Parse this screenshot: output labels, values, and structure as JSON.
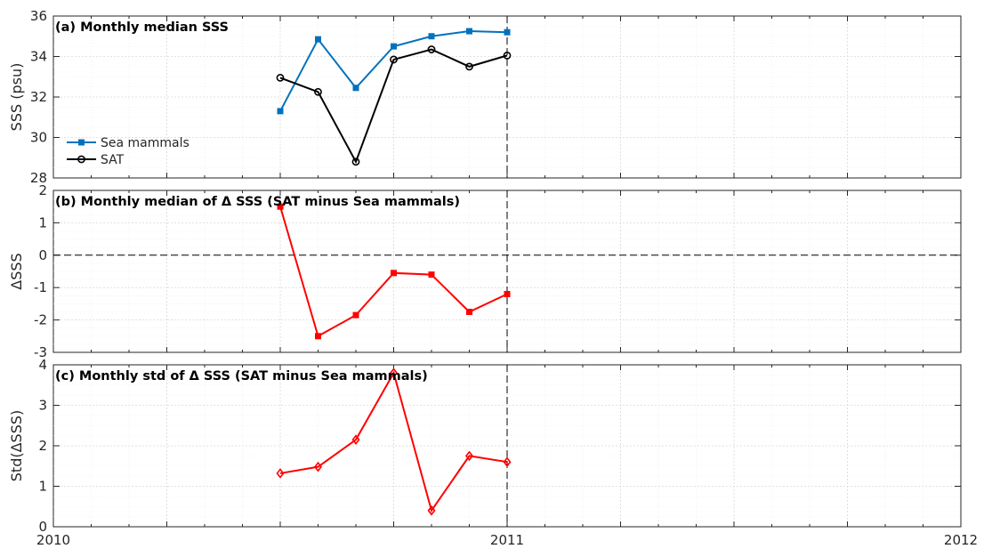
{
  "chart_data": [
    {
      "id": "a",
      "type": "line",
      "title": "(a) Monthly median SSS",
      "xlabel": "",
      "ylabel": "SSS (psu)",
      "ylim": [
        28,
        36
      ],
      "yticks": [
        28,
        30,
        32,
        34,
        36
      ],
      "xlim": [
        "2010-01",
        "2012-01"
      ],
      "xticks": [],
      "grid": true,
      "legend": "left",
      "vline_x": "2011-01",
      "series": [
        {
          "name": "Sea mammals",
          "color": "#0072bd",
          "marker": "square",
          "x": [
            "2010-07",
            "2010-08",
            "2010-09",
            "2010-10",
            "2010-11",
            "2010-12",
            "2011-01"
          ],
          "values": [
            31.3,
            34.85,
            32.45,
            34.5,
            35.0,
            35.25,
            35.2
          ]
        },
        {
          "name": "SAT",
          "color": "#000000",
          "marker": "circle",
          "x": [
            "2010-07",
            "2010-08",
            "2010-09",
            "2010-10",
            "2010-11",
            "2010-12",
            "2011-01"
          ],
          "values": [
            32.95,
            32.25,
            28.8,
            33.85,
            34.35,
            33.5,
            34.05
          ]
        }
      ]
    },
    {
      "id": "b",
      "type": "line",
      "title": "(b) Monthly median of Δ SSS (SAT minus Sea mammals)",
      "xlabel": "",
      "ylabel": "ΔSSS",
      "ylim": [
        -3,
        2
      ],
      "yticks": [
        -3,
        -2,
        -1,
        0,
        1,
        2
      ],
      "xlim": [
        "2010-01",
        "2012-01"
      ],
      "xticks": [],
      "grid": true,
      "vline_x": "2011-01",
      "hline_y": 0,
      "series": [
        {
          "color": "#ff0000",
          "marker": "square",
          "x": [
            "2010-07",
            "2010-08",
            "2010-09",
            "2010-10",
            "2010-11",
            "2010-12",
            "2011-01"
          ],
          "values": [
            1.5,
            -2.5,
            -1.85,
            -0.55,
            -0.6,
            -1.75,
            -1.2
          ]
        }
      ]
    },
    {
      "id": "c",
      "type": "line",
      "title": "(c) Monthly std of Δ SSS (SAT minus Sea mammals)",
      "xlabel": "",
      "ylabel": "Std(ΔSSS)",
      "ylim": [
        0,
        4
      ],
      "yticks": [
        0,
        1,
        2,
        3,
        4
      ],
      "xlim": [
        "2010-01",
        "2012-01"
      ],
      "xticks": [
        "2010",
        "2011",
        "2012"
      ],
      "grid": true,
      "vline_x": "2011-01",
      "series": [
        {
          "color": "#ff0000",
          "marker": "diamond",
          "x": [
            "2010-07",
            "2010-08",
            "2010-09",
            "2010-10",
            "2010-11",
            "2010-12",
            "2011-01"
          ],
          "values": [
            1.32,
            1.48,
            2.15,
            3.8,
            0.4,
            1.75,
            1.6
          ]
        }
      ]
    }
  ]
}
